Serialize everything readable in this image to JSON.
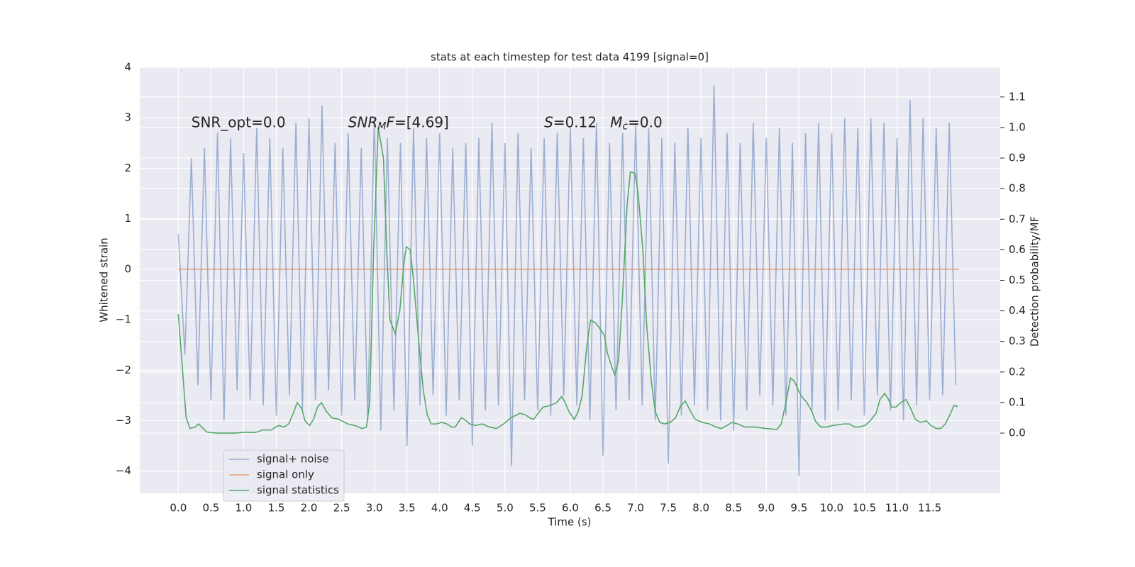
{
  "chart_data": {
    "type": "line",
    "title": "stats at each timestep for test data 4199 [signal=0]",
    "xlabel": "Time (s)",
    "ylabel": "Whitened strain",
    "y2label": "Detection probability/MF",
    "xlim": [
      -0.59,
      12.58
    ],
    "ylim": [
      -4.44,
      4.0
    ],
    "y2lim": [
      -0.197,
      1.197
    ],
    "xticks": [
      {
        "value": 0,
        "label": "0.0"
      },
      0.5,
      {
        "value": 1,
        "label": "1.0"
      },
      1.5,
      {
        "value": 2,
        "label": "2.0"
      },
      2.5,
      {
        "value": 3,
        "label": "3.0"
      },
      3.5,
      {
        "value": 4,
        "label": "4.0"
      },
      4.5,
      {
        "value": 5,
        "label": "5.0"
      },
      5.5,
      {
        "value": 6,
        "label": "6.0"
      },
      6.5,
      {
        "value": 7,
        "label": "7.0"
      },
      7.5,
      {
        "value": 8,
        "label": "8.0"
      },
      8.5,
      {
        "value": 9,
        "label": "9.0"
      },
      9.5,
      {
        "value": 10,
        "label": "10.0"
      },
      10.5,
      {
        "value": 11,
        "label": "11.0"
      },
      11.5
    ],
    "yticks": [
      {
        "value": -4,
        "label": "−4"
      },
      {
        "value": -3,
        "label": "−3"
      },
      {
        "value": -2,
        "label": "−2"
      },
      {
        "value": -1,
        "label": "−1"
      },
      0,
      1,
      2,
      3,
      4
    ],
    "y2ticks": [
      {
        "value": 0,
        "label": "0.0"
      },
      0.1,
      0.2,
      0.3,
      0.4,
      0.5,
      0.6,
      0.7,
      0.8,
      0.9,
      {
        "value": 1,
        "label": "1.0"
      },
      1.1
    ],
    "grid": true,
    "legend": "lower left",
    "annotations": [
      {
        "x": 0.2,
        "y": 2.9,
        "parts": [
          {
            "text": "SNR_opt=0.0",
            "style": "normal"
          }
        ]
      },
      {
        "x": 2.6,
        "y": 2.9,
        "parts": [
          {
            "text": "SNR",
            "style": "italic"
          },
          {
            "text": "M",
            "style": "sub"
          },
          {
            "text": "F",
            "style": "italic"
          },
          {
            "text": "=[4.69]",
            "style": "normal"
          }
        ]
      },
      {
        "x": 5.6,
        "y": 2.9,
        "parts": [
          {
            "text": "S",
            "style": "italic"
          },
          {
            "text": "=0.12   ",
            "style": "normal"
          },
          {
            "text": "M",
            "style": "italic"
          },
          {
            "text": "c",
            "style": "sub"
          },
          {
            "text": "=0.0",
            "style": "normal"
          }
        ]
      }
    ],
    "series": [
      {
        "name": "signal+ noise",
        "color": "#4c72b0",
        "opacity": 0.5,
        "x": [
          0,
          0.1,
          0.2,
          0.3,
          0.4,
          0.5,
          0.6,
          0.7,
          0.8,
          0.9,
          1,
          1.1,
          1.2,
          1.3,
          1.4,
          1.5,
          1.6,
          1.7,
          1.8,
          1.9,
          2,
          2.1,
          2.2,
          2.3,
          2.4,
          2.5,
          2.6,
          2.7,
          2.8,
          2.9,
          3,
          3.1,
          3.2,
          3.3,
          3.4,
          3.5,
          3.6,
          3.7,
          3.8,
          3.9,
          4,
          4.1,
          4.2,
          4.3,
          4.4,
          4.5,
          4.6,
          4.7,
          4.8,
          4.9,
          5,
          5.1,
          5.2,
          5.3,
          5.4,
          5.5,
          5.6,
          5.7,
          5.8,
          5.9,
          6,
          6.1,
          6.2,
          6.3,
          6.4,
          6.5,
          6.6,
          6.7,
          6.8,
          6.9,
          7,
          7.1,
          7.2,
          7.3,
          7.4,
          7.5,
          7.6,
          7.7,
          7.8,
          7.9,
          8,
          8.1,
          8.2,
          8.3,
          8.4,
          8.5,
          8.6,
          8.7,
          8.8,
          8.9,
          9,
          9.1,
          9.2,
          9.3,
          9.4,
          9.5,
          9.6,
          9.7,
          9.8,
          9.9,
          10,
          10.1,
          10.2,
          10.3,
          10.4,
          10.5,
          10.6,
          10.7,
          10.8,
          10.9,
          11,
          11.1,
          11.2,
          11.3,
          11.4,
          11.5,
          11.6,
          11.7,
          11.8,
          11.9
        ],
        "values": [
          0.7,
          -1.7,
          2.2,
          -2.3,
          2.4,
          -2.6,
          2.7,
          -3.0,
          2.6,
          -2.4,
          2.3,
          -2.6,
          2.8,
          -2.7,
          2.6,
          -2.9,
          2.4,
          -2.5,
          2.9,
          -2.8,
          3.0,
          -2.6,
          3.25,
          -2.4,
          2.5,
          -2.9,
          2.7,
          -2.6,
          2.4,
          -3.0,
          3.0,
          -3.2,
          2.6,
          -2.8,
          2.5,
          -3.5,
          2.8,
          -2.7,
          2.6,
          -2.5,
          2.7,
          -2.9,
          2.4,
          -2.6,
          2.5,
          -3.5,
          2.6,
          -2.8,
          2.9,
          -2.7,
          2.5,
          -3.9,
          2.7,
          -2.6,
          2.4,
          -2.8,
          2.6,
          -2.9,
          2.7,
          -2.5,
          2.8,
          -2.7,
          2.6,
          -3.0,
          2.9,
          -3.7,
          2.5,
          -2.8,
          2.7,
          -2.6,
          2.9,
          -2.7,
          2.8,
          -3.0,
          2.6,
          -3.85,
          2.5,
          -2.9,
          2.8,
          -2.7,
          2.6,
          -2.8,
          3.65,
          -3.0,
          2.7,
          -3.2,
          2.5,
          -2.8,
          2.9,
          -2.5,
          2.6,
          -2.7,
          2.8,
          -2.9,
          2.5,
          -4.1,
          2.7,
          -2.8,
          2.9,
          -3.0,
          2.7,
          -2.8,
          3.0,
          -2.6,
          2.8,
          -2.9,
          3.0,
          -2.5,
          2.9,
          -2.8,
          2.6,
          -3.0,
          3.35,
          -2.7,
          3.0,
          -2.6,
          2.8,
          -2.5,
          2.9,
          -2.3
        ]
      },
      {
        "name": "signal only",
        "color": "#dd8452",
        "opacity": 0.7,
        "x": [
          0,
          11.95
        ],
        "values": [
          0,
          0
        ]
      },
      {
        "name": "signal statistics",
        "color": "#55a868",
        "opacity": 1,
        "axis": "y2",
        "x": [
          0,
          0.12,
          0.18,
          0.26,
          0.31,
          0.44,
          0.59,
          0.86,
          1.02,
          1.18,
          1.29,
          1.42,
          1.53,
          1.62,
          1.69,
          1.77,
          1.82,
          1.89,
          1.94,
          2.01,
          2.07,
          2.13,
          2.19,
          2.27,
          2.35,
          2.46,
          2.59,
          2.7,
          2.81,
          2.88,
          2.93,
          2.99,
          3.06,
          3.14,
          3.19,
          3.24,
          3.32,
          3.39,
          3.45,
          3.49,
          3.55,
          3.6,
          3.68,
          3.75,
          3.81,
          3.87,
          3.95,
          4.03,
          4.11,
          4.18,
          4.24,
          4.33,
          4.38,
          4.46,
          4.55,
          4.65,
          4.76,
          4.87,
          4.98,
          5.09,
          5.23,
          5.31,
          5.38,
          5.44,
          5.49,
          5.58,
          5.69,
          5.79,
          5.87,
          5.92,
          5.98,
          6.06,
          6.12,
          6.18,
          6.25,
          6.31,
          6.39,
          6.46,
          6.52,
          6.57,
          6.63,
          6.68,
          6.74,
          6.8,
          6.87,
          6.92,
          6.99,
          7.04,
          7.11,
          7.17,
          7.24,
          7.3,
          7.37,
          7.44,
          7.53,
          7.61,
          7.69,
          7.76,
          7.82,
          7.91,
          8.02,
          8.13,
          8.23,
          8.31,
          8.4,
          8.47,
          8.56,
          8.67,
          8.83,
          8.99,
          9.16,
          9.23,
          9.3,
          9.37,
          9.43,
          9.49,
          9.54,
          9.62,
          9.7,
          9.75,
          9.83,
          9.92,
          10.02,
          10.19,
          10.27,
          10.35,
          10.42,
          10.51,
          10.59,
          10.68,
          10.74,
          10.81,
          10.86,
          10.92,
          10.98,
          11.06,
          11.14,
          11.21,
          11.28,
          11.36,
          11.45,
          11.52,
          11.6,
          11.67,
          11.74,
          11.82,
          11.87,
          11.93
        ],
        "values": [
          0.39,
          0.05,
          0.015,
          0.02,
          0.03,
          0.003,
          0.0,
          0.0,
          0.003,
          0.002,
          0.01,
          0.01,
          0.025,
          0.02,
          0.03,
          0.07,
          0.1,
          0.08,
          0.04,
          0.025,
          0.045,
          0.085,
          0.1,
          0.07,
          0.05,
          0.045,
          0.03,
          0.025,
          0.015,
          0.02,
          0.1,
          0.6,
          1.0,
          0.9,
          0.6,
          0.37,
          0.325,
          0.4,
          0.55,
          0.61,
          0.6,
          0.5,
          0.3,
          0.14,
          0.06,
          0.03,
          0.03,
          0.035,
          0.03,
          0.02,
          0.02,
          0.05,
          0.045,
          0.03,
          0.025,
          0.03,
          0.02,
          0.015,
          0.03,
          0.05,
          0.065,
          0.06,
          0.05,
          0.045,
          0.06,
          0.085,
          0.09,
          0.1,
          0.12,
          0.1,
          0.07,
          0.045,
          0.07,
          0.12,
          0.28,
          0.37,
          0.36,
          0.34,
          0.32,
          0.26,
          0.22,
          0.19,
          0.24,
          0.45,
          0.75,
          0.855,
          0.85,
          0.78,
          0.6,
          0.35,
          0.17,
          0.07,
          0.035,
          0.03,
          0.035,
          0.05,
          0.09,
          0.105,
          0.08,
          0.045,
          0.035,
          0.03,
          0.02,
          0.015,
          0.025,
          0.035,
          0.03,
          0.02,
          0.02,
          0.015,
          0.012,
          0.03,
          0.1,
          0.18,
          0.17,
          0.14,
          0.12,
          0.1,
          0.07,
          0.04,
          0.02,
          0.02,
          0.025,
          0.03,
          0.03,
          0.02,
          0.02,
          0.025,
          0.04,
          0.065,
          0.11,
          0.13,
          0.115,
          0.085,
          0.085,
          0.1,
          0.11,
          0.08,
          0.045,
          0.035,
          0.04,
          0.025,
          0.015,
          0.015,
          0.03,
          0.065,
          0.09,
          0.087
        ]
      }
    ]
  }
}
